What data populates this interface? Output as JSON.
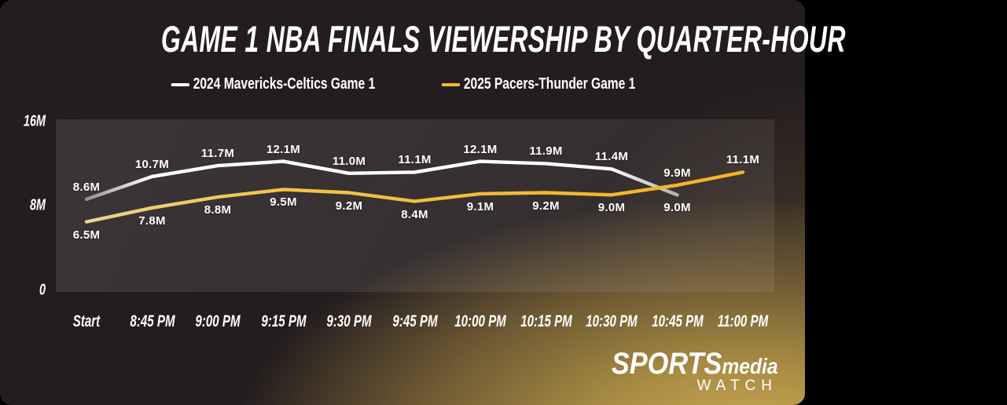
{
  "chart_data": {
    "type": "line",
    "title": "GAME 1 NBA FINALS VIEWERSHIP BY QUARTER-HOUR",
    "categories": [
      "Start",
      "8:45 PM",
      "9:00 PM",
      "9:15 PM",
      "9:30 PM",
      "9:45 PM",
      "10:00 PM",
      "10:15 PM",
      "10:30 PM",
      "10:45 PM",
      "11:00 PM"
    ],
    "yticks": [
      "16M",
      "8M",
      "0"
    ],
    "ylim": [
      0,
      16
    ],
    "unit": "M",
    "grid": false,
    "legend_position": "top-center",
    "series": [
      {
        "name": "2024 Mavericks-Celtics Game 1",
        "color": "#ffffff",
        "line_gradient": [
          [
            "0%",
            "#968f8f"
          ],
          [
            "11%",
            "#ffffff"
          ],
          [
            "88%",
            "#ffffff"
          ],
          [
            "100%",
            "#b5afaf"
          ]
        ],
        "values": [
          8.6,
          10.7,
          11.7,
          12.1,
          11.0,
          11.1,
          12.1,
          11.9,
          11.4,
          9.0,
          null
        ],
        "label_positions": [
          "above",
          "above",
          "above",
          "above",
          "above",
          "above",
          "above",
          "above",
          "above",
          "below",
          null
        ]
      },
      {
        "name": "2025 Pacers-Thunder Game 1",
        "color": "#f0b92e",
        "line_gradient": [
          [
            "0%",
            "#e9d493"
          ],
          [
            "28%",
            "#f2c546"
          ],
          [
            "70%",
            "#f0ba2e"
          ],
          [
            "100%",
            "#f2b525"
          ]
        ],
        "values": [
          6.5,
          7.8,
          8.8,
          9.5,
          9.2,
          8.4,
          9.1,
          9.2,
          9.0,
          9.9,
          11.1
        ],
        "label_positions": [
          "below",
          "below",
          "below",
          "below",
          "below",
          "below",
          "below",
          "below",
          "below",
          "above",
          "above"
        ]
      }
    ]
  },
  "logo": {
    "sports": "SPORTS",
    "media": "media",
    "watch": "WATCH"
  },
  "colors": {
    "background_dark": "#241d1f",
    "background_gold": "#cdab57",
    "panel": "rgba(255,255,255,0.08)",
    "text": "#ffffff"
  }
}
